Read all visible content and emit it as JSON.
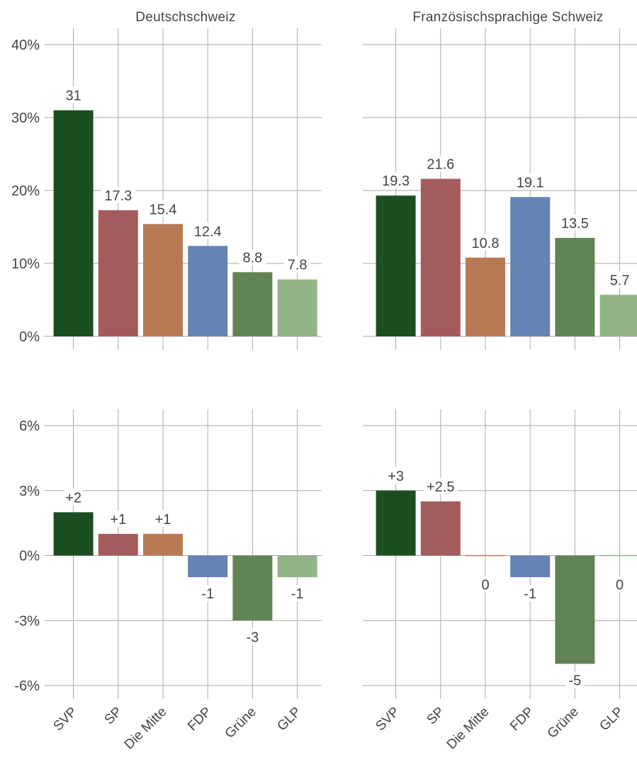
{
  "colors": {
    "SVP": "#1b4f21",
    "SP": "#a45b5d",
    "Die Mitte": "#b87a55",
    "FDP": "#6583b4",
    "Grüne": "#618454",
    "GLP": "#91b386",
    "grid": "#aaaaaa",
    "text": "#444444"
  },
  "chart_data": [
    {
      "type": "bar",
      "title": "Deutschschweiz",
      "categories": [
        "SVP",
        "SP",
        "Die Mitte",
        "FDP",
        "Grüne",
        "GLP"
      ],
      "values": [
        31,
        17.3,
        15.4,
        12.4,
        8.8,
        7.8
      ],
      "value_labels": [
        "31",
        "17.3",
        "15.4",
        "12.4",
        "8.8",
        "7.8"
      ],
      "ylim": [
        0,
        40
      ],
      "yticks": [
        0,
        10,
        20,
        30,
        40
      ],
      "ytick_labels": [
        "0%",
        "10%",
        "20%",
        "30%",
        "40%"
      ],
      "grid": true,
      "show_xticks": false
    },
    {
      "type": "bar",
      "title": "Französischsprachige Schweiz",
      "categories": [
        "SVP",
        "SP",
        "Die Mitte",
        "FDP",
        "Grüne",
        "GLP"
      ],
      "values": [
        19.3,
        21.6,
        10.8,
        19.1,
        13.5,
        5.7
      ],
      "value_labels": [
        "19.3",
        "21.6",
        "10.8",
        "19.1",
        "13.5",
        "5.7"
      ],
      "ylim": [
        0,
        40
      ],
      "yticks": [
        0,
        10,
        20,
        30,
        40
      ],
      "ytick_labels": [],
      "grid": true,
      "show_xticks": false
    },
    {
      "type": "bar",
      "title": "",
      "categories": [
        "SVP",
        "SP",
        "Die Mitte",
        "FDP",
        "Grüne",
        "GLP"
      ],
      "values": [
        2,
        1,
        1,
        -1,
        -3,
        -1
      ],
      "value_labels": [
        "+2",
        "+1",
        "+1",
        "-1",
        "-3",
        "-1"
      ],
      "ylim": [
        -6,
        6
      ],
      "yticks": [
        -6,
        -3,
        0,
        3,
        6
      ],
      "ytick_labels": [
        "-6%",
        "-3%",
        "0%",
        "3%",
        "6%"
      ],
      "grid": true,
      "show_xticks": true
    },
    {
      "type": "bar",
      "title": "",
      "categories": [
        "SVP",
        "SP",
        "Die Mitte",
        "FDP",
        "Grüne",
        "GLP"
      ],
      "values": [
        3,
        2.5,
        0,
        -1,
        -5,
        0
      ],
      "value_labels": [
        "+3",
        "+2.5",
        "0",
        "-1",
        "-5",
        "0"
      ],
      "ylim": [
        -6,
        6
      ],
      "yticks": [
        -6,
        -3,
        0,
        3,
        6
      ],
      "ytick_labels": [],
      "grid": true,
      "show_xticks": true
    }
  ]
}
